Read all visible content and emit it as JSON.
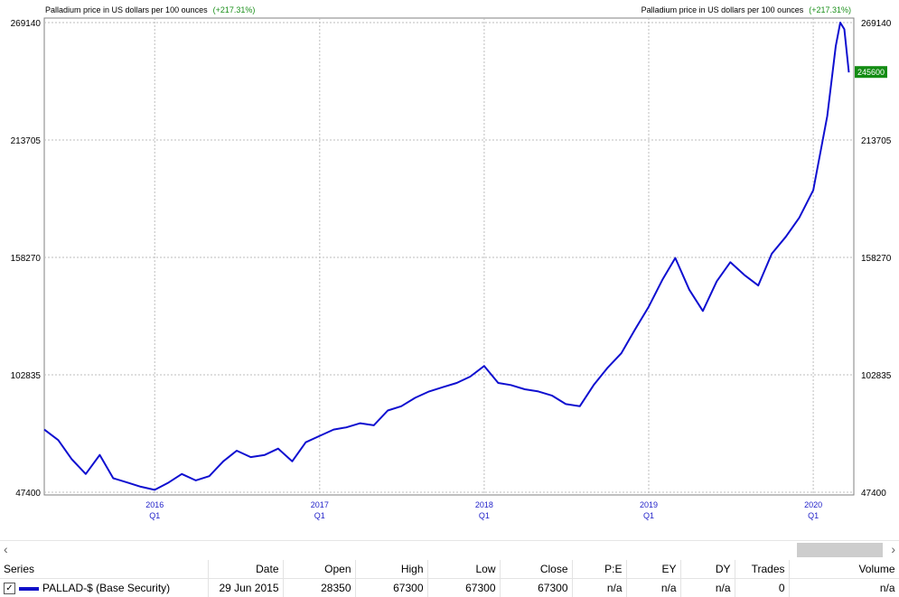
{
  "header": {
    "title_left": "Palladium price in US dollars per 100 ounces",
    "change_left": "(+217.31%)",
    "title_right": "Palladium price in US dollars per 100 ounces",
    "change_right": "(+217.31%)"
  },
  "last_price_label": "245600",
  "colors": {
    "line": "#0f0fd0",
    "grid": "#bdbdbd",
    "axis_text": "#2323c9",
    "last_price_bg": "#138c13",
    "change": "#1a8f1a"
  },
  "chart_data": {
    "type": "line",
    "title": "Palladium price in US dollars per 100 ounces",
    "change": "+217.31%",
    "ylim": [
      47400,
      269140
    ],
    "yticks": [
      47400,
      102835,
      158270,
      213705,
      269140
    ],
    "ytick_labels": [
      "47400",
      "102835",
      "158270",
      "213705",
      "269140"
    ],
    "xlim": [
      "2015-05-01",
      "2020-03-31"
    ],
    "xticks": [
      {
        "date": "2016-01-01",
        "year": "2016",
        "quarter": "Q1"
      },
      {
        "date": "2017-01-01",
        "year": "2017",
        "quarter": "Q1"
      },
      {
        "date": "2018-01-01",
        "year": "2018",
        "quarter": "Q1"
      },
      {
        "date": "2019-01-01",
        "year": "2019",
        "quarter": "Q1"
      },
      {
        "date": "2020-01-01",
        "year": "2020",
        "quarter": "Q1"
      }
    ],
    "grid": true,
    "series": [
      {
        "name": "PALLAD-$ (Base Security)",
        "x": [
          "2015-05-01",
          "2015-06-01",
          "2015-07-01",
          "2015-08-01",
          "2015-09-01",
          "2015-10-01",
          "2015-11-01",
          "2015-12-01",
          "2016-01-01",
          "2016-02-01",
          "2016-03-01",
          "2016-04-01",
          "2016-05-01",
          "2016-06-01",
          "2016-07-01",
          "2016-08-01",
          "2016-09-01",
          "2016-10-01",
          "2016-11-01",
          "2016-12-01",
          "2017-01-01",
          "2017-02-01",
          "2017-03-01",
          "2017-04-01",
          "2017-05-01",
          "2017-06-01",
          "2017-07-01",
          "2017-08-01",
          "2017-09-01",
          "2017-10-01",
          "2017-11-01",
          "2017-12-01",
          "2018-01-01",
          "2018-02-01",
          "2018-03-01",
          "2018-04-01",
          "2018-05-01",
          "2018-06-01",
          "2018-07-01",
          "2018-08-01",
          "2018-09-01",
          "2018-10-01",
          "2018-11-01",
          "2018-12-01",
          "2019-01-01",
          "2019-02-01",
          "2019-03-01",
          "2019-04-01",
          "2019-05-01",
          "2019-06-01",
          "2019-07-01",
          "2019-08-01",
          "2019-09-01",
          "2019-10-01",
          "2019-11-01",
          "2019-12-01",
          "2020-01-01",
          "2020-02-01",
          "2020-02-20",
          "2020-03-01",
          "2020-03-10",
          "2020-03-20"
        ],
        "y": [
          77000,
          72000,
          63000,
          56000,
          65000,
          54000,
          52000,
          50000,
          48500,
          52000,
          56000,
          53000,
          55000,
          62000,
          67000,
          64000,
          65000,
          68000,
          62000,
          71000,
          74000,
          77000,
          78000,
          80000,
          79000,
          86000,
          88000,
          92000,
          95000,
          97000,
          99000,
          102000,
          107000,
          99000,
          98000,
          96000,
          95000,
          93000,
          89000,
          88000,
          98000,
          106000,
          113000,
          124000,
          135000,
          148000,
          158000,
          143000,
          133000,
          147000,
          156000,
          150000,
          145000,
          160000,
          168000,
          177000,
          190000,
          225000,
          258000,
          269140,
          266000,
          245600
        ]
      }
    ]
  },
  "scrollbar": {
    "left_arrow": "‹",
    "right_arrow": "›"
  },
  "table": {
    "headers": [
      "Series",
      "Date",
      "Open",
      "High",
      "Low",
      "Close",
      "P:E",
      "EY",
      "DY",
      "Trades",
      "Volume"
    ],
    "row": {
      "checked": "✓",
      "series": "PALLAD-$ (Base Security)",
      "date": "29 Jun 2015",
      "open": "28350",
      "high": "67300",
      "low": "67300",
      "close": "67300",
      "pe": "n/a",
      "ey": "n/a",
      "dy": "n/a",
      "trades": "0",
      "volume": "n/a"
    }
  }
}
